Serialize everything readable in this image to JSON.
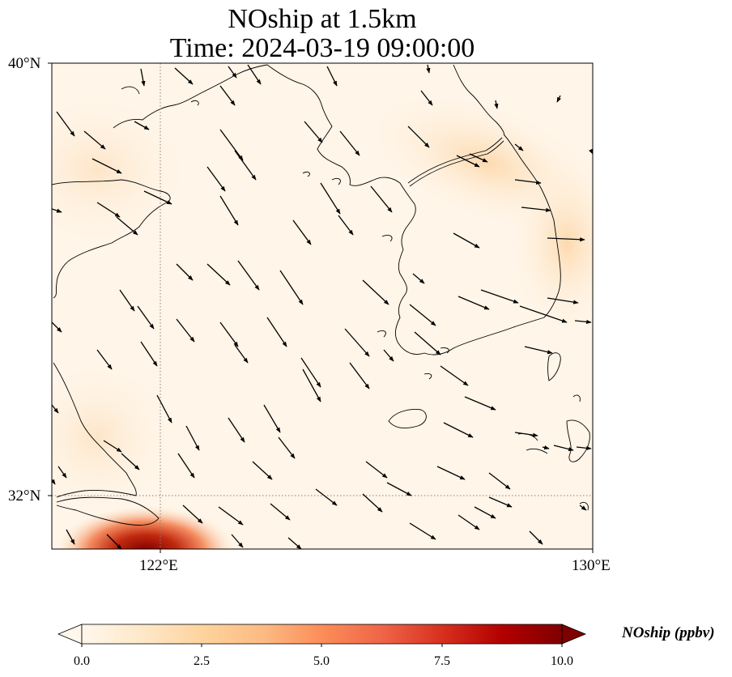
{
  "title_line1": "NOship at 1.5km",
  "title_line2": "Time: 2024-03-19 09:00:00",
  "lat_labels": [
    "40°N",
    "32°N"
  ],
  "lon_labels": [
    "122°E",
    "130°E"
  ],
  "colorbar": {
    "label": "NOship (ppbv)",
    "ticks": [
      "0.0",
      "2.5",
      "5.0",
      "7.5",
      "10.0"
    ],
    "min": 0,
    "max": 10,
    "extend": "both",
    "colormap": "OrRd",
    "colors": [
      "#fff7ec",
      "#fee8c8",
      "#fdd49e",
      "#fdbb84",
      "#fc8d59",
      "#ef6548",
      "#d7301f",
      "#b30000",
      "#7f0000"
    ]
  },
  "map": {
    "lon_range": [
      120,
      130
    ],
    "lat_range": [
      31,
      40
    ],
    "gridlines": "dotted",
    "field": "NOship",
    "units": "ppbv",
    "wind_vectors": true
  }
}
